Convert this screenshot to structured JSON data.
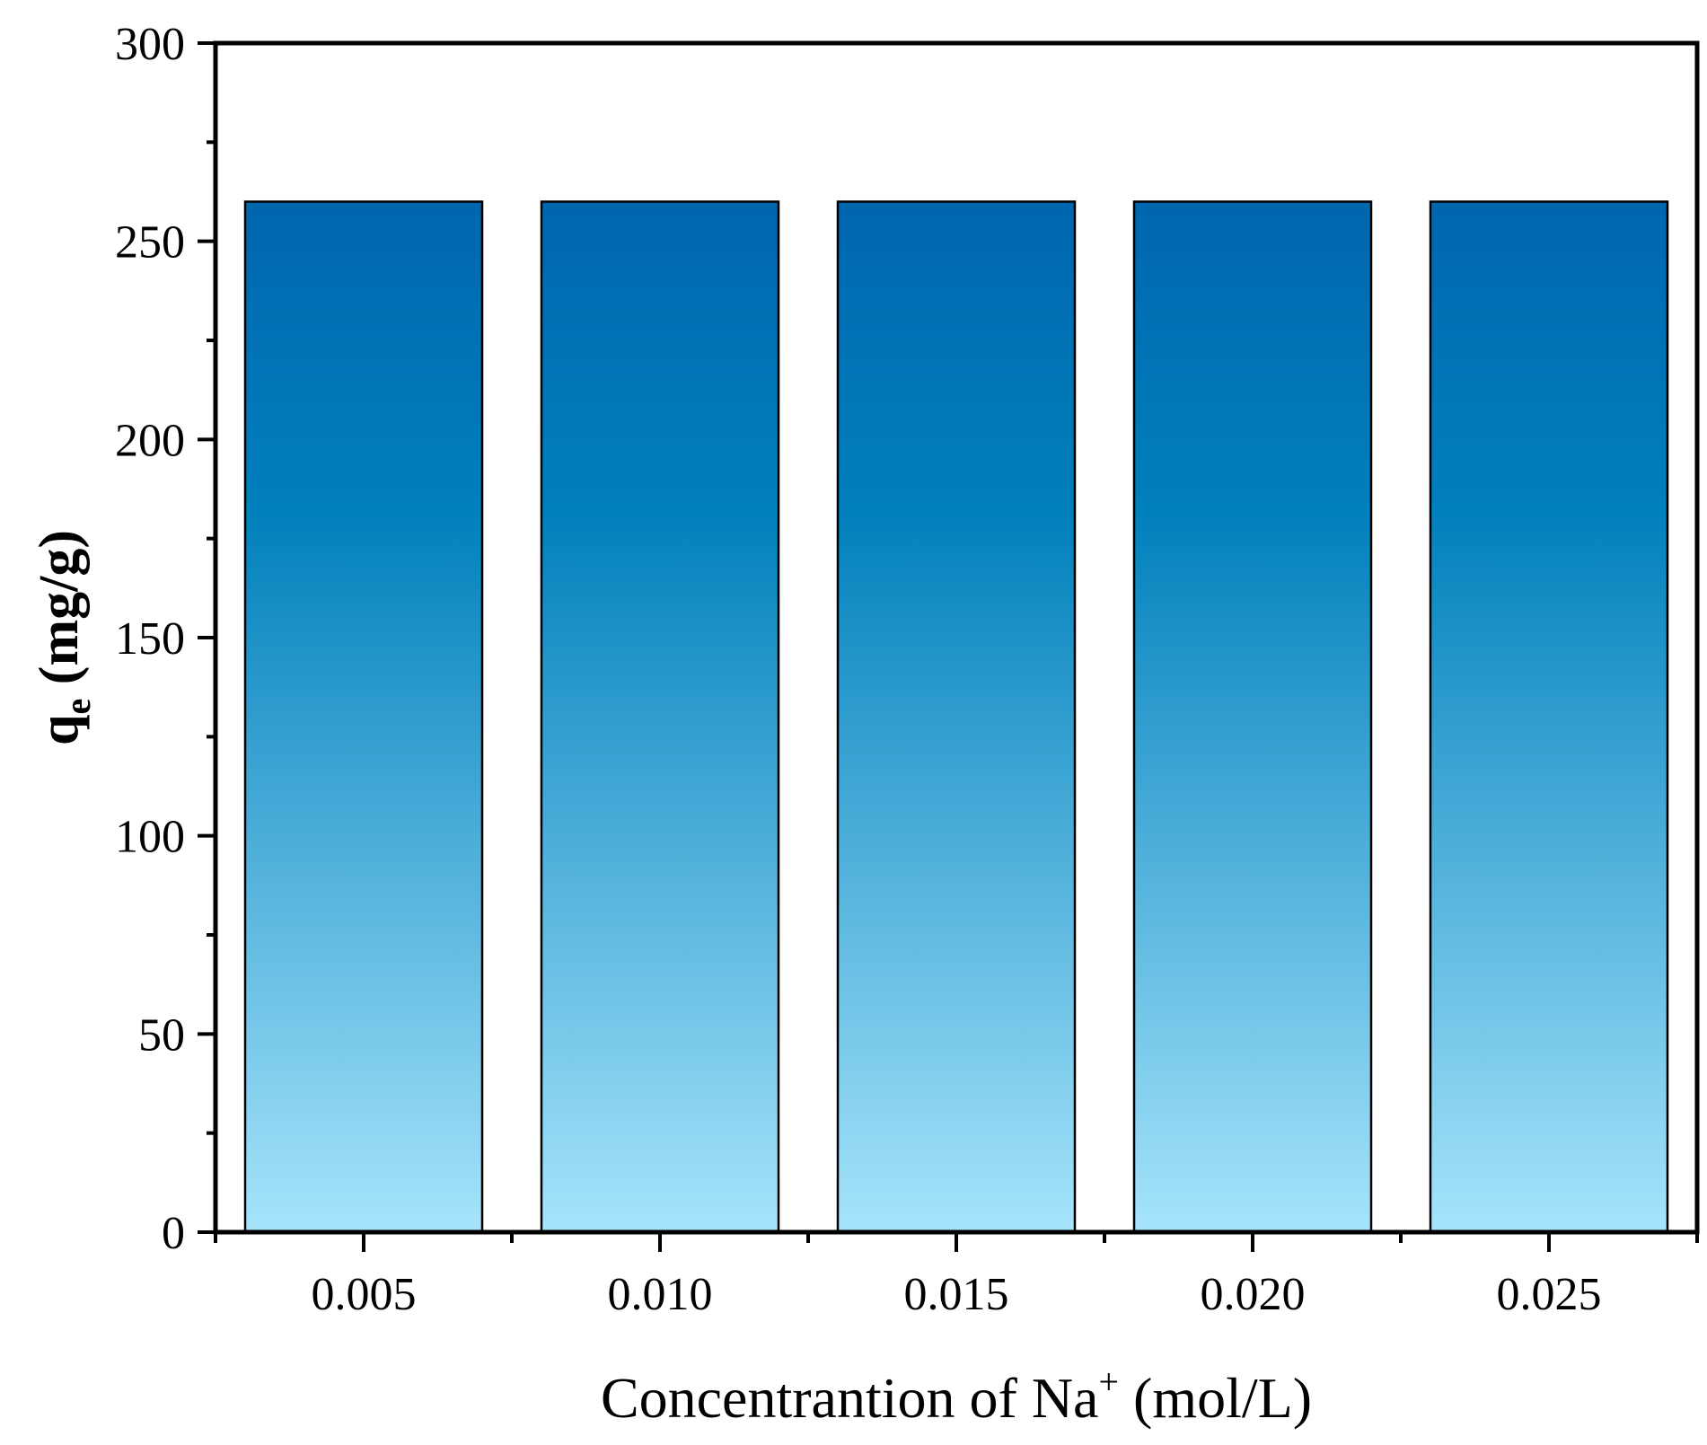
{
  "chart_data": {
    "type": "bar",
    "categories": [
      "0.005",
      "0.010",
      "0.015",
      "0.020",
      "0.025"
    ],
    "values": [
      260,
      260,
      260,
      260,
      260
    ],
    "ylim": [
      0,
      300
    ],
    "yticks": [
      0,
      50,
      100,
      150,
      200,
      250,
      300
    ],
    "ytick_labels": [
      "0",
      "50",
      "100",
      "150",
      "200",
      "250",
      "300"
    ],
    "xlabel": {
      "main": "Concentrantion of Na",
      "superscript": "+",
      "unit": " (mol/L)"
    },
    "ylabel": {
      "main": "q",
      "subscript": "e",
      "unit": " (mg/g)"
    },
    "grid": false,
    "legend": "none",
    "colors": {
      "bar_top": "#0066AE",
      "bar_mid": "#0080BC",
      "bar_bottom": "#A6E4FB",
      "bar_edge": "#000000",
      "axis": "#000000"
    }
  }
}
